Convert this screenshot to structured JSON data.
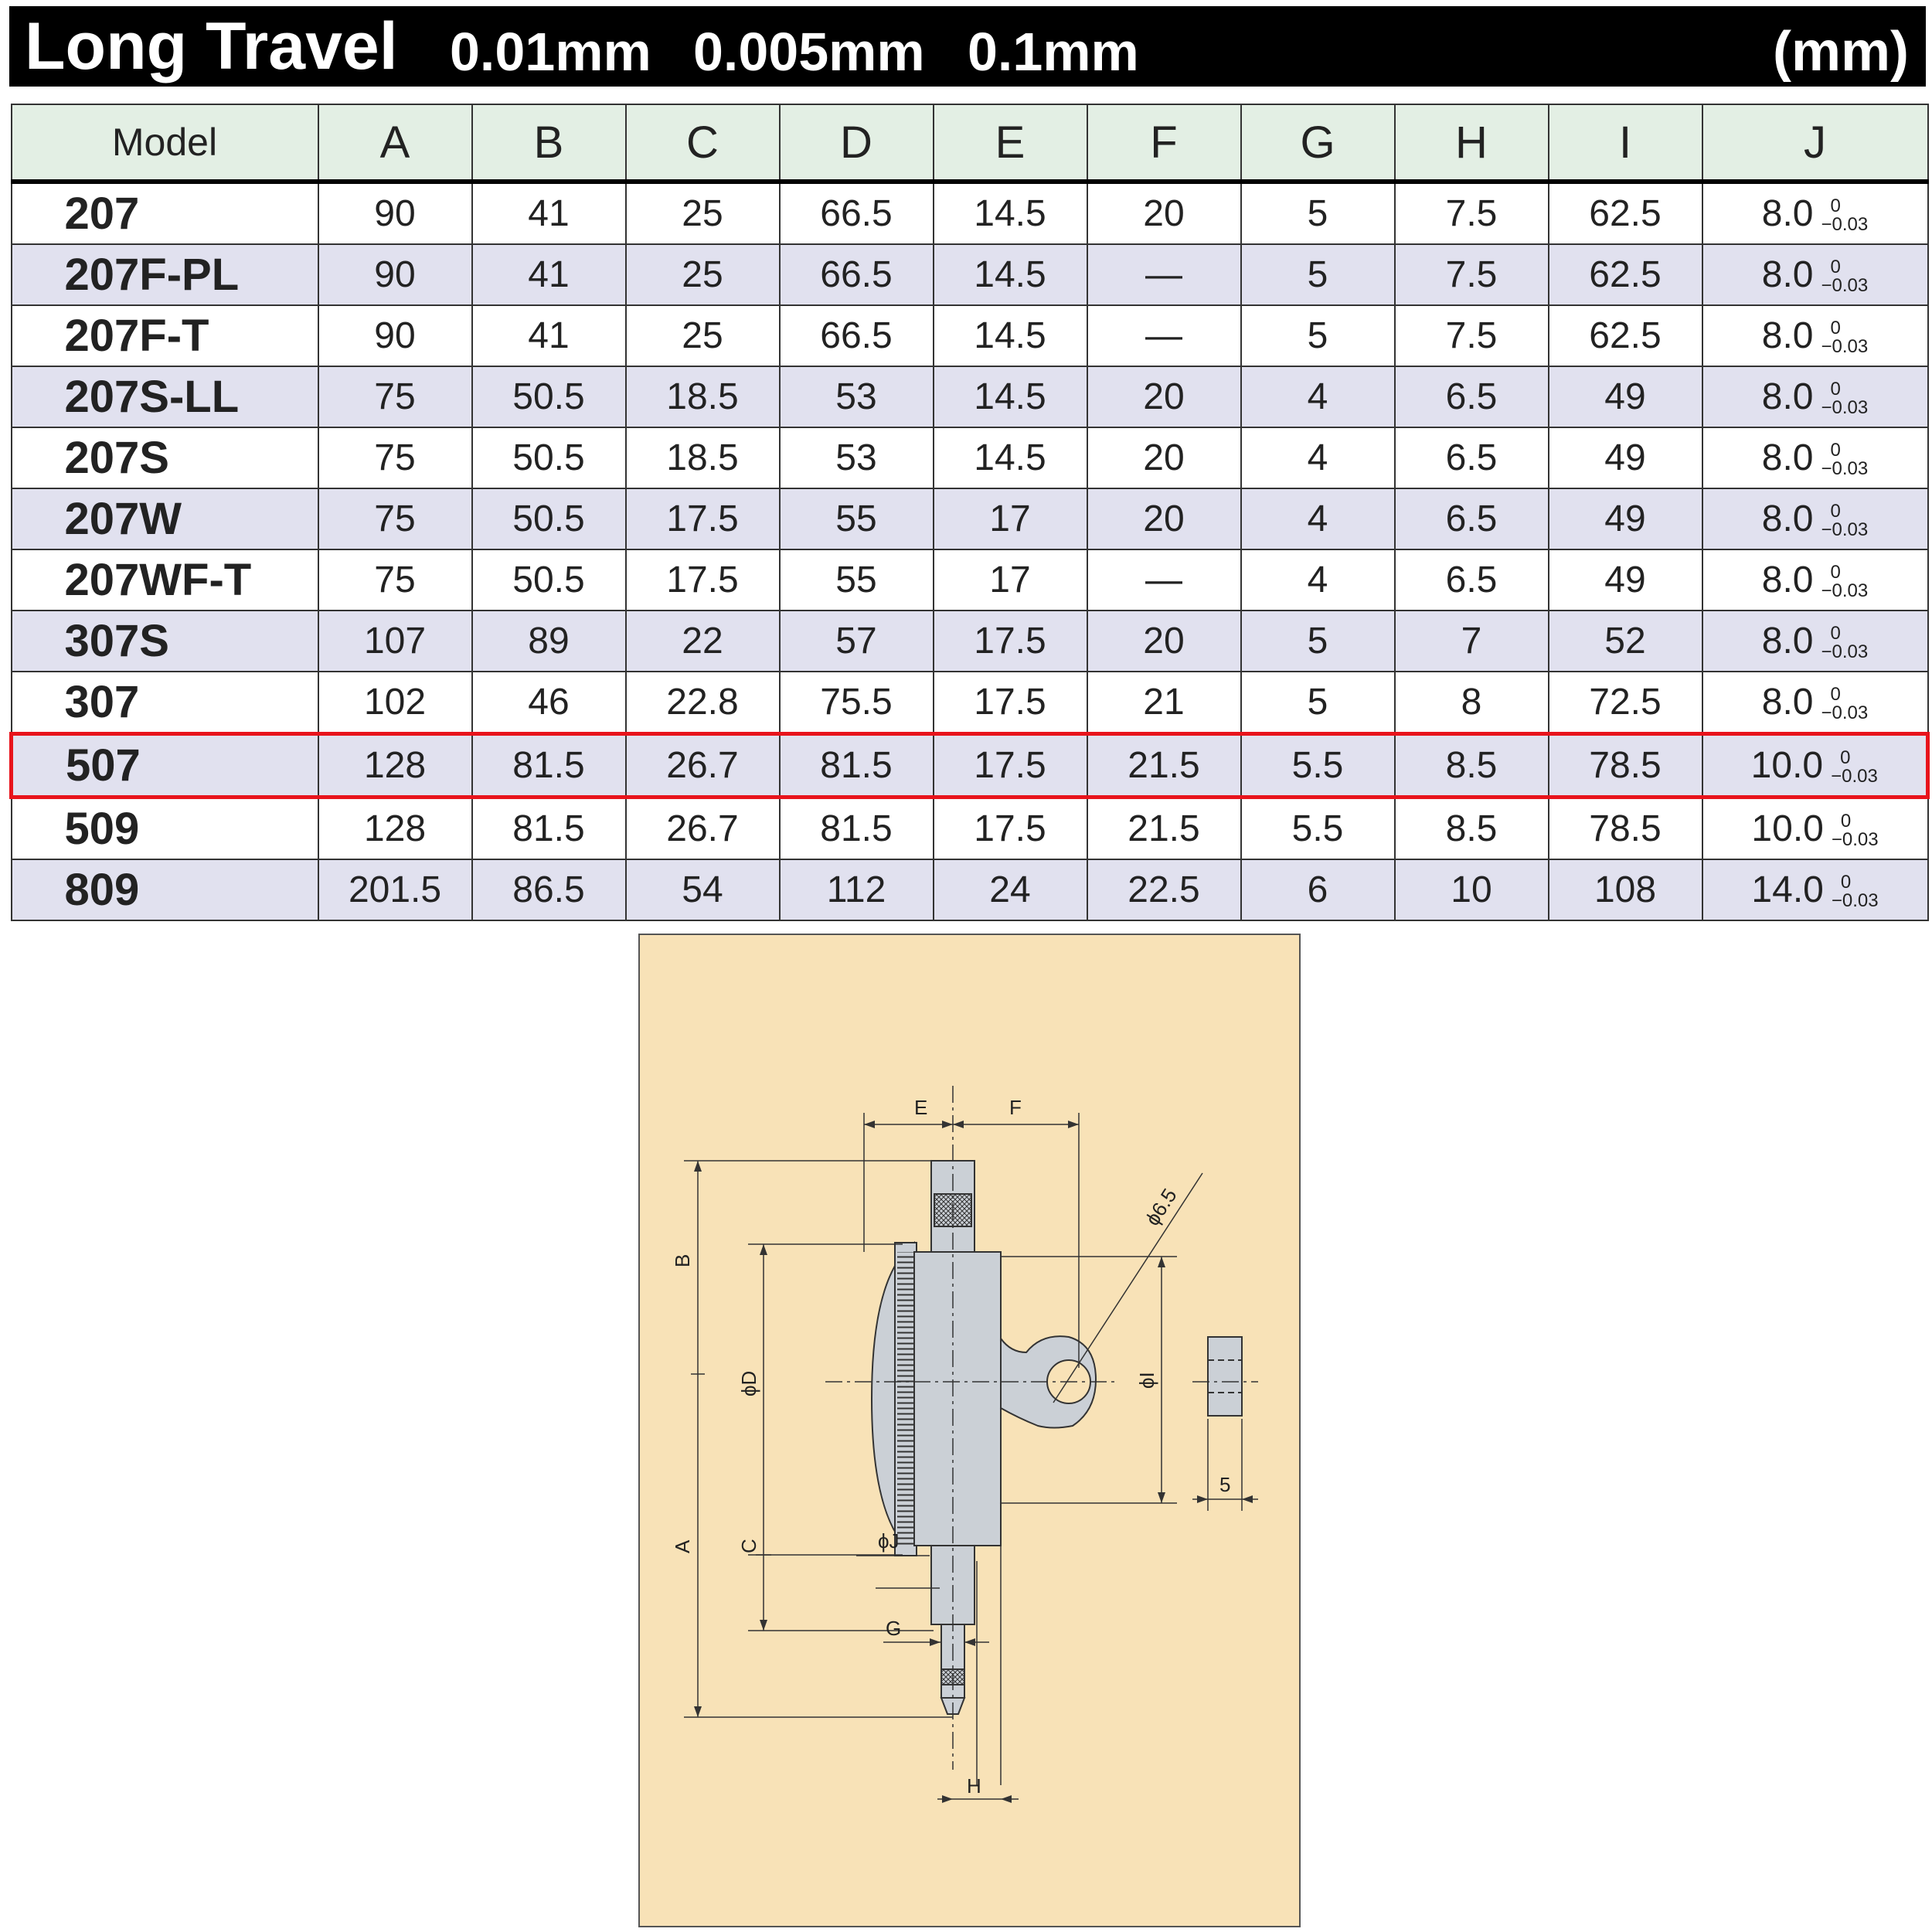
{
  "title": {
    "main": "Long Travel",
    "spec_1": "0.01mm",
    "spec_2": "0.005mm",
    "spec_3": "0.1mm",
    "unit": "(mm)"
  },
  "table": {
    "headers": [
      "Model",
      "A",
      "B",
      "C",
      "D",
      "E",
      "F",
      "G",
      "H",
      "I",
      "J"
    ],
    "tolerance": {
      "upper": "0",
      "lower": "−0.03"
    },
    "rows": [
      {
        "model": "207",
        "values": [
          "90",
          "41",
          "25",
          "66.5",
          "14.5",
          "20",
          "5",
          "7.5",
          "62.5",
          "8.0"
        ]
      },
      {
        "model": "207F-PL",
        "values": [
          "90",
          "41",
          "25",
          "66.5",
          "14.5",
          "—",
          "5",
          "7.5",
          "62.5",
          "8.0"
        ]
      },
      {
        "model": "207F-T",
        "values": [
          "90",
          "41",
          "25",
          "66.5",
          "14.5",
          "—",
          "5",
          "7.5",
          "62.5",
          "8.0"
        ]
      },
      {
        "model": "207S-LL",
        "values": [
          "75",
          "50.5",
          "18.5",
          "53",
          "14.5",
          "20",
          "4",
          "6.5",
          "49",
          "8.0"
        ]
      },
      {
        "model": "207S",
        "values": [
          "75",
          "50.5",
          "18.5",
          "53",
          "14.5",
          "20",
          "4",
          "6.5",
          "49",
          "8.0"
        ]
      },
      {
        "model": "207W",
        "values": [
          "75",
          "50.5",
          "17.5",
          "55",
          "17",
          "20",
          "4",
          "6.5",
          "49",
          "8.0"
        ]
      },
      {
        "model": "207WF-T",
        "values": [
          "75",
          "50.5",
          "17.5",
          "55",
          "17",
          "—",
          "4",
          "6.5",
          "49",
          "8.0"
        ]
      },
      {
        "model": "307S",
        "values": [
          "107",
          "89",
          "22",
          "57",
          "17.5",
          "20",
          "5",
          "7",
          "52",
          "8.0"
        ]
      },
      {
        "model": "307",
        "values": [
          "102",
          "46",
          "22.8",
          "75.5",
          "17.5",
          "21",
          "5",
          "8",
          "72.5",
          "8.0"
        ]
      },
      {
        "model": "507",
        "values": [
          "128",
          "81.5",
          "26.7",
          "81.5",
          "17.5",
          "21.5",
          "5.5",
          "8.5",
          "78.5",
          "10.0"
        ],
        "highlighted": true
      },
      {
        "model": "509",
        "values": [
          "128",
          "81.5",
          "26.7",
          "81.5",
          "17.5",
          "21.5",
          "5.5",
          "8.5",
          "78.5",
          "10.0"
        ]
      },
      {
        "model": "809",
        "values": [
          "201.5",
          "86.5",
          "54",
          "112",
          "24",
          "22.5",
          "6",
          "10",
          "108",
          "14.0"
        ]
      }
    ]
  },
  "drawing": {
    "labels": {
      "E": "E",
      "F": "F",
      "B": "B",
      "A": "A",
      "C": "C",
      "G": "G",
      "H": "H",
      "phi_D": "ϕD",
      "phi_I": "ϕI",
      "phi_J": "ϕJ",
      "phi_6_5": "ϕ6.5",
      "five": "5"
    },
    "highlight_color": "#e8141c",
    "panel_color": "#f8e2b7",
    "header_color": "#e3efe4",
    "stripe_color": "#e1e1ef"
  }
}
